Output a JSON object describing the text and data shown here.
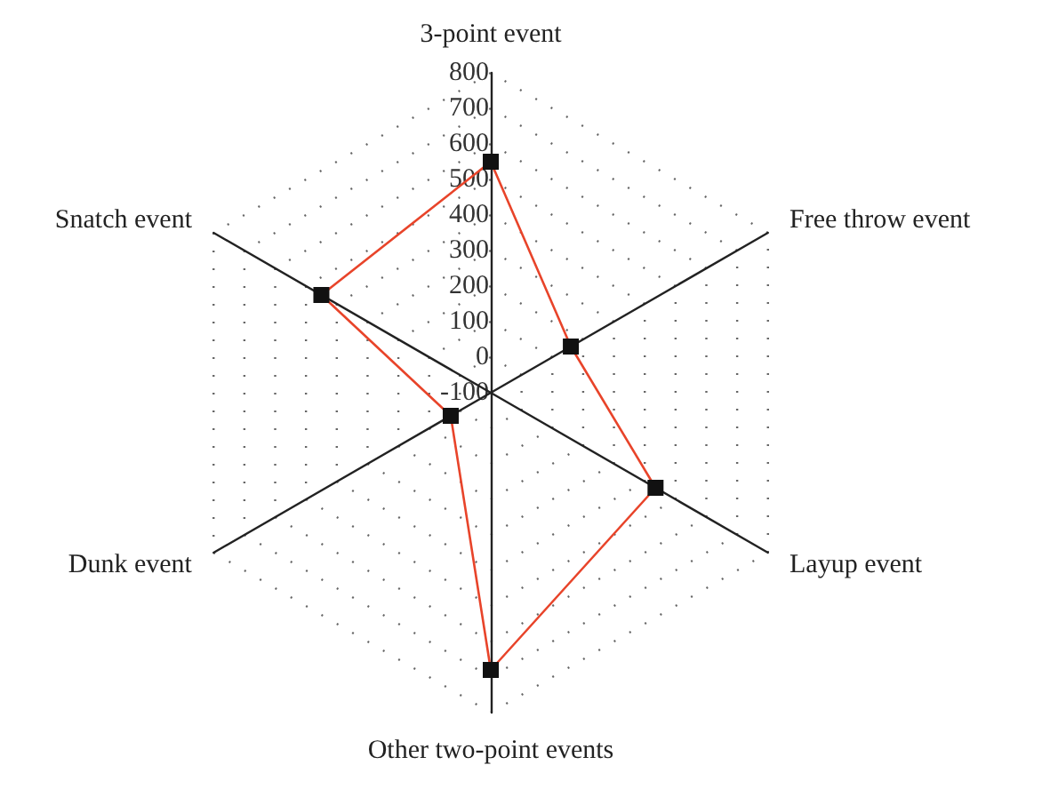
{
  "chart_data": {
    "type": "radar",
    "categories": [
      "3-point event",
      "Free throw event",
      "Layup event",
      "Other two-point events",
      "Dunk event",
      "Snatch event"
    ],
    "series": [
      {
        "color": "#e8442a",
        "values": [
          550,
          160,
          435,
          680,
          30,
          450
        ]
      }
    ],
    "ylim": [
      -100,
      800
    ],
    "yticks": [
      -100,
      0,
      100,
      200,
      300,
      400,
      500,
      600,
      700,
      800
    ],
    "marker": "square",
    "line_style": "solid",
    "grid": true
  }
}
